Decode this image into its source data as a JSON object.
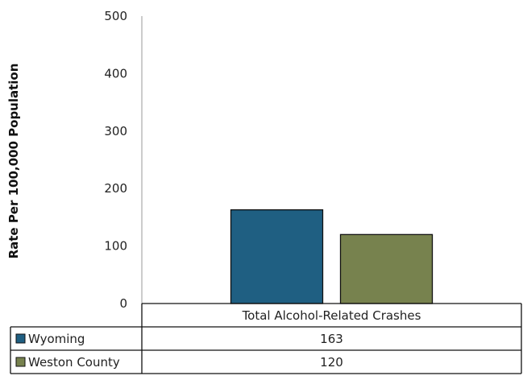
{
  "chart_data": {
    "type": "bar",
    "categories": [
      "Total Alcohol-Related Crashes"
    ],
    "series": [
      {
        "name": "Wyoming",
        "values": [
          163
        ],
        "color": "#1F5F82"
      },
      {
        "name": "Weston County",
        "values": [
          120
        ],
        "color": "#77824E"
      }
    ],
    "ylabel": "Rate Per 100,000 Population",
    "ylim": [
      0,
      500
    ],
    "yticks": [
      0,
      100,
      200,
      300,
      400,
      500
    ],
    "grid": false,
    "legend": "data table below chart"
  }
}
